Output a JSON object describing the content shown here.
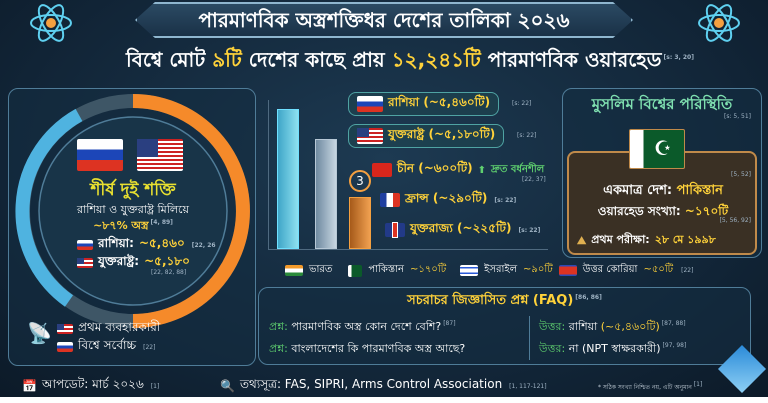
{
  "header": {
    "title": "পারমাণবিক অস্ত্রশক্তিধর দেশের তালিকা ২০২৬",
    "subtitle_pre": "বিশ্বে মোট ",
    "subtitle_count": "৯টি",
    "subtitle_mid": " দেশের কাছে প্রায় ",
    "subtitle_total": "১২,২৪১টি",
    "subtitle_post": " পারমাণবিক ওয়ারহেড",
    "subtitle_ref": "[s: 3, 20]"
  },
  "top_two": {
    "heading": "শীর্ষ দুই শক্তি",
    "line1": "রাশিয়া ও যুক্তরাষ্ট্র মিলিয়ে",
    "share": "~৮৭% অস্ত্র",
    "share_ref": "[4, 89]",
    "share_percent": 87,
    "russia_label": "রাশিয়া:",
    "russia_value": "~৫,৪৬০",
    "russia_ref": "[22, 26",
    "usa_label": "যুক্তরাষ্ট্র:",
    "usa_value": "~৫,১৮০",
    "usa_ref": "[22, 82, 88]",
    "first_user": "প্রথম ব্যবহারকারী",
    "world_top": "বিশ্বে সর্বোচ্চ",
    "world_top_ref": "[22]",
    "colors": {
      "russia_arc": "#4fb3e0",
      "usa_arc": "#f58a2a"
    }
  },
  "ranking": [
    {
      "name": "রাশিয়া (~৫,৪৬০টি)",
      "ref": "[s: 22]",
      "flag": "ru",
      "warheads": 5460
    },
    {
      "name": "যুক্তরাষ্ট্র (~৫,১৮০টি)",
      "ref": "[s: 22]",
      "flag": "us",
      "warheads": 5180
    },
    {
      "name": "চীন (~৬০০টি)",
      "ref": "[22, 37]",
      "flag": "cn",
      "warheads": 600,
      "trend": "দ্রুত বর্ধনশীল"
    },
    {
      "name": "ফ্রান্স (~২৯০টি)",
      "ref": "[s: 22]",
      "flag": "fr",
      "warheads": 290
    },
    {
      "name": "যুক্তরাজ্য (~২২৫টি)",
      "ref": "[s: 22]",
      "flag": "uk",
      "warheads": 225
    }
  ],
  "rank_badge": "3",
  "muslim": {
    "heading": "মুসলিম বিশ্বের পরিস্থিতি",
    "heading_ref": "[s: 5, 51]",
    "ref1": "[5, 52]",
    "only_label": "একমাত্র দেশ: ",
    "only_value": "পাকিস্তান",
    "count_label": "ওয়ারহেড সংখ্যা: ",
    "count_value": "~১৭০টি",
    "ref2": "[5, 56, 92]",
    "test_label": "প্রথম পরীক্ষা: ",
    "test_value": "২৮ মে ১৯৯৮"
  },
  "others": [
    {
      "flag": "in",
      "name": "ভারত",
      "value": ""
    },
    {
      "flag": "pk",
      "name": "পাকিস্তান",
      "value": "~১৭০টি"
    },
    {
      "flag": "il",
      "name": "ইসরাইল",
      "value": "~৯০টি"
    },
    {
      "flag": "kp",
      "name": "উত্তর কোরিয়া",
      "value": "~৫০টি"
    }
  ],
  "others_ref": "[22]",
  "faq": {
    "title": "সচরাচর জিজ্ঞাসিত প্রশ্ন (FAQ)",
    "title_ref": "[86, 86]",
    "items": [
      {
        "q_label": "প্রশ্ন:",
        "q": "পারমাণবিক অস্ত্র কোন দেশে বেশি?",
        "q_ref": "[87]",
        "a_label": "উত্তর:",
        "a": "রাশিয়া ",
        "a_hl": "(~৫,৪৬০টি)",
        "a_ref": "[87, 88]"
      },
      {
        "q_label": "প্রশ্ন:",
        "q": "বাংলাদেশের কি পারমাণবিক অস্ত্র আছে?",
        "q_ref": "",
        "a_label": "উত্তর:",
        "a": "না (NPT স্বাক্ষরকারী)",
        "a_hl": "",
        "a_ref": "[97, 98]"
      }
    ]
  },
  "footer": {
    "update": "আপডেট: মার্চ ২০২৬",
    "update_ref": "[1]",
    "source": "তথ্যসূত্র: FAS, SIPRI, Arms Control Association",
    "source_ref": "[1, 117-121]",
    "note": "* সঠিক সংখ্যা নিশ্চিত নয়, এটি অনুমান",
    "note_ref": "[1]"
  }
}
